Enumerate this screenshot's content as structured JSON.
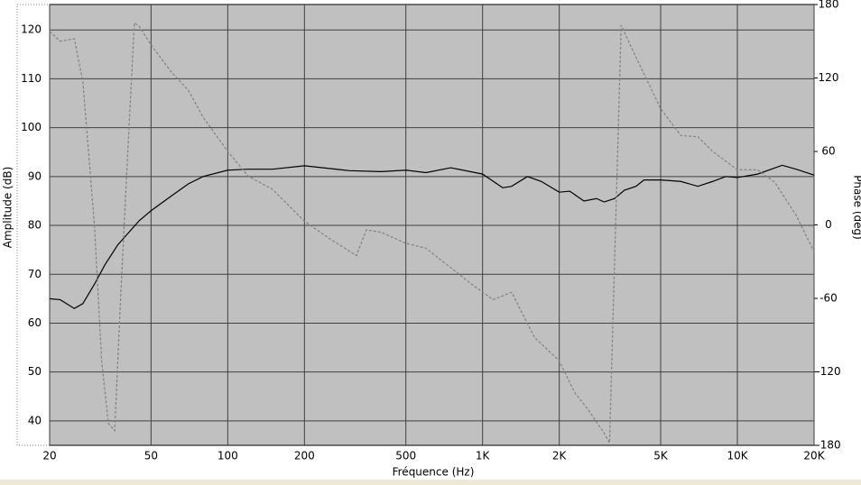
{
  "chart_data": {
    "type": "line",
    "xlabel": "Fréquence (Hz)",
    "ylabel": "Amplitude (dB)",
    "y2label": "Phase (deg)",
    "xscale": "log",
    "grid": true,
    "xlim": [
      20,
      20000
    ],
    "xticks": [
      20,
      50,
      100,
      200,
      500,
      {
        "value": 1000,
        "label": "1K"
      },
      {
        "value": 2000,
        "label": "2K"
      },
      {
        "value": 5000,
        "label": "5K"
      },
      {
        "value": 10000,
        "label": "10K"
      },
      {
        "value": 20000,
        "label": "20K"
      }
    ],
    "ylim": [
      35,
      125.2
    ],
    "yticks": [
      40,
      50,
      60,
      70,
      80,
      90,
      100,
      110,
      120
    ],
    "y2lim": [
      -180,
      180
    ],
    "y2ticks": [
      -180,
      -120,
      -60,
      0,
      60,
      120,
      180
    ],
    "series": [
      {
        "color": "#000000",
        "line_style": "solid",
        "x": [
          20,
          22,
          25,
          27,
          30,
          33,
          37,
          40,
          45,
          50,
          60,
          70,
          80,
          100,
          120,
          150,
          200,
          300,
          400,
          500,
          600,
          750,
          1000,
          1200,
          1300,
          1500,
          1700,
          2000,
          2200,
          2500,
          2800,
          3000,
          3300,
          3600,
          4000,
          4300,
          5000,
          6000,
          7000,
          8000,
          9000,
          10000,
          12000,
          15000,
          17000,
          20000
        ],
        "values": [
          65,
          64.8,
          63,
          64,
          68,
          72,
          76,
          78,
          81,
          83,
          86,
          88.5,
          90,
          91.3,
          91.5,
          91.5,
          92.2,
          91.2,
          91,
          91.3,
          90.8,
          91.8,
          90.5,
          87.7,
          88,
          90,
          89,
          86.8,
          87,
          85,
          85.5,
          84.8,
          85.5,
          87.2,
          88,
          89.3,
          89.3,
          89,
          88,
          89,
          90,
          89.8,
          90.5,
          92.3,
          91.5,
          90.3
        ]
      },
      {
        "color": "#808080",
        "line_style": "dashed",
        "axis": "y2",
        "x": [
          20,
          22,
          25,
          27,
          30,
          32,
          34,
          36,
          38,
          40,
          43,
          45,
          50,
          60,
          70,
          80,
          100,
          120,
          150,
          200,
          250,
          320,
          350,
          400,
          500,
          600,
          700,
          900,
          1100,
          1300,
          1600,
          2000,
          2300,
          2600,
          3000,
          3150,
          3500,
          4000,
          5000,
          6000,
          7000,
          8000,
          10000,
          12000,
          14000,
          17000,
          20000
        ],
        "values": [
          158,
          150,
          152,
          117,
          -1,
          -111,
          -162,
          -168,
          -59,
          36,
          165,
          162,
          147,
          125,
          110,
          88,
          60,
          40,
          29,
          3,
          -11,
          -25,
          -4,
          -6,
          -15,
          -19,
          -30,
          -48,
          -61,
          -55,
          -92,
          -111,
          -137,
          -151,
          -170,
          -178,
          163,
          137,
          95,
          73,
          72,
          60,
          45,
          45,
          35,
          8,
          -22
        ]
      }
    ]
  }
}
